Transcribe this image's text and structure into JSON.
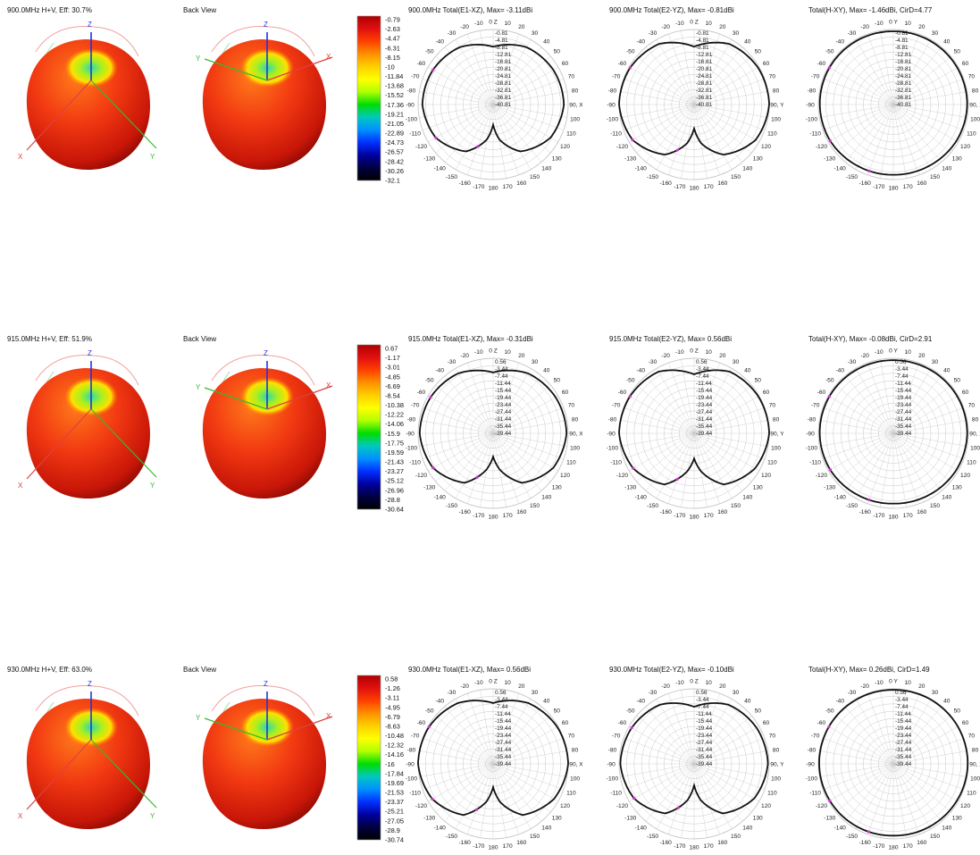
{
  "colors": {
    "trace": "#111111",
    "marker": "#cc33cc",
    "grid": "#c8c8c8",
    "axis_x": "#e04040",
    "axis_y": "#33bb33",
    "axis_z": "#2233dd",
    "scale_stops": [
      "#b00000",
      "#e01010",
      "#ff4000",
      "#ff9000",
      "#ffd000",
      "#ffff00",
      "#b0ff00",
      "#00dd00",
      "#00c8c0",
      "#0090ff",
      "#0030ff",
      "#0000a0",
      "#000040",
      "#000000"
    ]
  },
  "ui": {
    "back_view": "Back View",
    "axis_labels": {
      "x": "X",
      "y": "Y",
      "z": "Z"
    }
  },
  "rows": [
    {
      "freq_label": "900.0MHz H+V, Eff: 30.7%",
      "colorbar": [
        "-0.79",
        "-2.63",
        "-4.47",
        "-6.31",
        "-8.15",
        "-10",
        "-11.84",
        "-13.68",
        "-15.52",
        "-17.36",
        "-19.21",
        "-21.05",
        "-22.89",
        "-24.73",
        "-26.57",
        "-28.42",
        "-30.26",
        "-32.1"
      ],
      "plots": [
        {
          "title": "900.0MHz Total(E1-XZ), Max= -3.11dBi",
          "axis_label": "90, X",
          "rings": [
            "-0.81",
            "-4.81",
            "-8.81",
            "-12.81",
            "-16.81",
            "-20.81",
            "-24.81",
            "-28.81",
            "-32.81",
            "-36.81",
            "-40.81"
          ]
        },
        {
          "title": "900.0MHz Total(E2-YZ), Max= -0.81dBi",
          "axis_label": "90, Y",
          "rings": [
            "-0.81",
            "-4.81",
            "-8.81",
            "-12.81",
            "-16.81",
            "-20.81",
            "-24.81",
            "-28.81",
            "-32.81",
            "-36.81",
            "-40.81"
          ]
        },
        {
          "title": "Total(H-XY), Max= -1.46dBi, CirD=4.77",
          "axis_label": "90, X",
          "rings": [
            "-0.81",
            "-4.81",
            "-8.81",
            "-12.81",
            "-16.81",
            "-20.81",
            "-24.81",
            "-28.81",
            "-32.81",
            "-36.81",
            "-40.81"
          ]
        }
      ]
    },
    {
      "freq_label": "915.0MHz H+V, Eff: 51.9%",
      "colorbar": [
        "0.67",
        "-1.17",
        "-3.01",
        "-4.85",
        "-6.69",
        "-8.54",
        "-10.38",
        "-12.22",
        "-14.06",
        "-15.9",
        "-17.75",
        "-19.59",
        "-21.43",
        "-23.27",
        "-25.12",
        "-26.96",
        "-28.8",
        "-30.64"
      ],
      "plots": [
        {
          "title": "915.0MHz Total(E1-XZ), Max= -0.31dBi",
          "axis_label": "90, X",
          "rings": [
            "0.56",
            "-3.44",
            "-7.44",
            "-11.44",
            "-15.44",
            "-19.44",
            "-23.44",
            "-27.44",
            "-31.44",
            "-35.44",
            "-39.44"
          ]
        },
        {
          "title": "915.0MHz Total(E2-YZ), Max= 0.56dBi",
          "axis_label": "90, Y",
          "rings": [
            "0.56",
            "-3.44",
            "-7.44",
            "-11.44",
            "-15.44",
            "-19.44",
            "-23.44",
            "-27.44",
            "-31.44",
            "-35.44",
            "-39.44"
          ]
        },
        {
          "title": "Total(H-XY), Max= -0.08dBi, CirD=2.91",
          "axis_label": "90, X",
          "rings": [
            "0.56",
            "-3.44",
            "-7.44",
            "-11.44",
            "-15.44",
            "-19.44",
            "-23.44",
            "-27.44",
            "-31.44",
            "-35.44",
            "-39.44"
          ]
        }
      ]
    },
    {
      "freq_label": "930.0MHz H+V, Eff: 63.0%",
      "colorbar": [
        "0.58",
        "-1.26",
        "-3.11",
        "-4.95",
        "-6.79",
        "-8.63",
        "-10.48",
        "-12.32",
        "-14.16",
        "-16",
        "-17.84",
        "-19.69",
        "-21.53",
        "-23.37",
        "-25.21",
        "-27.05",
        "-28.9",
        "-30.74"
      ],
      "plots": [
        {
          "title": "930.0MHz Total(E1-XZ), Max= 0.56dBi",
          "axis_label": "90, X",
          "rings": [
            "0.56",
            "-3.44",
            "-7.44",
            "-11.44",
            "-15.44",
            "-19.44",
            "-23.44",
            "-27.44",
            "-31.44",
            "-35.44",
            "-39.44"
          ]
        },
        {
          "title": "930.0MHz Total(E2-YZ), Max= -0.10dBi",
          "axis_label": "90, Y",
          "rings": [
            "0.56",
            "-3.44",
            "-7.44",
            "-11.44",
            "-15.44",
            "-19.44",
            "-23.44",
            "-27.44",
            "-31.44",
            "-35.44",
            "-39.44"
          ]
        },
        {
          "title": "Total(H-XY), Max= 0.26dBi, CirD=1.49",
          "axis_label": "90, X",
          "rings": [
            "0.56",
            "-3.44",
            "-7.44",
            "-11.44",
            "-15.44",
            "-19.44",
            "-23.44",
            "-27.44",
            "-31.44",
            "-35.44",
            "-39.44"
          ]
        }
      ]
    }
  ],
  "chart_data": [
    {
      "type": "line",
      "title": "900.0MHz Total(E1-XZ), Max= -3.11dBi",
      "x": [
        0,
        30,
        60,
        90,
        120,
        150,
        170,
        180,
        190,
        210,
        240,
        270,
        300,
        330
      ],
      "y": [
        -10,
        -5.5,
        -3.8,
        -3.11,
        -5.5,
        -12,
        -22,
        -30,
        -22,
        -12,
        -5.5,
        -3.11,
        -3.8,
        -5.5
      ],
      "ylim": [
        -40.81,
        -0.81
      ]
    },
    {
      "type": "line",
      "title": "900.0MHz Total(E2-YZ), Max= -0.81dBi",
      "x": [
        0,
        30,
        60,
        90,
        120,
        150,
        170,
        180,
        190,
        210,
        240,
        270,
        300,
        330
      ],
      "y": [
        -10,
        -3.5,
        -1.5,
        -0.81,
        -3,
        -10,
        -20,
        -28,
        -20,
        -10,
        -3,
        -0.81,
        -1.5,
        -3.5
      ],
      "ylim": [
        -40.81,
        -0.81
      ]
    },
    {
      "type": "line",
      "title": "Total(H-XY), Max= -1.46dBi, CirD=4.77",
      "x": [
        0,
        30,
        60,
        90,
        120,
        150,
        180,
        210,
        240,
        270,
        300,
        330
      ],
      "y": [
        -1.8,
        -1.6,
        -1.5,
        -1.46,
        -2,
        -3,
        -3.4,
        -3,
        -2,
        -1.6,
        -1.5,
        -1.6
      ],
      "ylim": [
        -40.81,
        -0.81
      ]
    },
    {
      "type": "line",
      "title": "915.0MHz Total(E1-XZ), Max= -0.31dBi",
      "x": [
        0,
        30,
        60,
        90,
        120,
        150,
        170,
        180,
        190,
        210,
        240,
        270,
        300,
        330
      ],
      "y": [
        -7,
        -2.5,
        -1,
        -0.31,
        -2.5,
        -9,
        -20,
        -27,
        -20,
        -9,
        -2.5,
        -0.31,
        -1,
        -2.5
      ],
      "ylim": [
        -39.44,
        0.56
      ]
    },
    {
      "type": "line",
      "title": "915.0MHz Total(E2-YZ), Max= 0.56dBi",
      "x": [
        0,
        30,
        60,
        90,
        120,
        150,
        170,
        180,
        190,
        210,
        240,
        270,
        300,
        330
      ],
      "y": [
        -8,
        -1.5,
        0,
        0.56,
        -2,
        -8,
        -19,
        -26,
        -19,
        -8,
        -2,
        0.56,
        0,
        -1.5
      ],
      "ylim": [
        -39.44,
        0.56
      ]
    },
    {
      "type": "line",
      "title": "Total(H-XY), Max= -0.08dBi, CirD=2.91",
      "x": [
        0,
        30,
        60,
        90,
        120,
        150,
        180,
        210,
        240,
        270,
        300,
        330
      ],
      "y": [
        -0.5,
        -0.3,
        -0.1,
        -0.08,
        -0.6,
        -1.5,
        -2,
        -1.5,
        -0.6,
        -0.2,
        -0.1,
        -0.3
      ],
      "ylim": [
        -39.44,
        0.56
      ]
    },
    {
      "type": "line",
      "title": "930.0MHz Total(E1-XZ), Max= 0.56dBi",
      "x": [
        0,
        30,
        60,
        90,
        120,
        150,
        170,
        180,
        190,
        210,
        240,
        270,
        300,
        330
      ],
      "y": [
        -7,
        -2,
        0,
        0.56,
        -2,
        -8,
        -19,
        -27,
        -19,
        -8,
        -2,
        0.56,
        0,
        -2
      ],
      "ylim": [
        -39.44,
        0.56
      ]
    },
    {
      "type": "line",
      "title": "930.0MHz Total(E2-YZ), Max= -0.10dBi",
      "x": [
        0,
        30,
        60,
        90,
        120,
        150,
        170,
        180,
        190,
        210,
        240,
        270,
        300,
        330
      ],
      "y": [
        -9,
        -3,
        -1,
        -0.1,
        -2.5,
        -9,
        -20,
        -28,
        -20,
        -9,
        -2.5,
        -0.1,
        -1,
        -3
      ],
      "ylim": [
        -39.44,
        0.56
      ]
    },
    {
      "type": "line",
      "title": "Total(H-XY), Max= 0.26dBi, CirD=1.49",
      "x": [
        0,
        30,
        60,
        90,
        120,
        150,
        180,
        210,
        240,
        270,
        300,
        330
      ],
      "y": [
        0,
        0.2,
        0.26,
        0.2,
        -0.3,
        -0.8,
        -1.2,
        -0.8,
        -0.3,
        0.1,
        0.2,
        0.1
      ],
      "ylim": [
        -39.44,
        0.56
      ]
    }
  ]
}
